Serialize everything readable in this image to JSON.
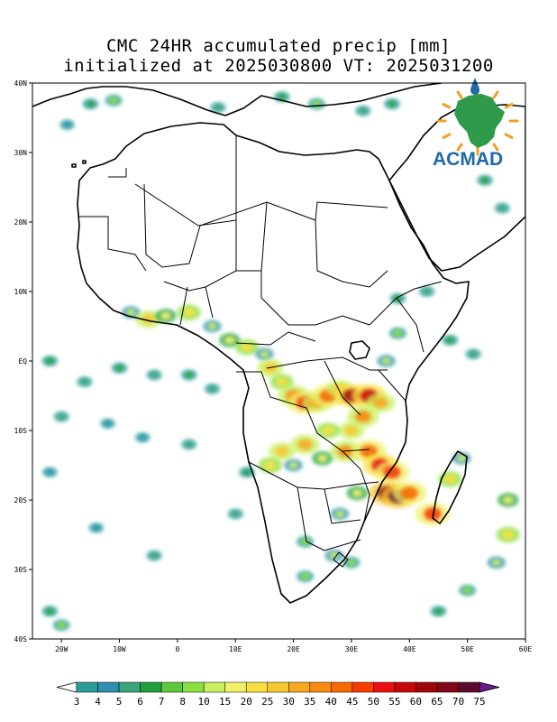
{
  "title": {
    "line1": "CMC 24HR accumulated precip [mm]",
    "line2": "initialized at 2025030800 VT: 2025031200"
  },
  "map": {
    "lon_range": [
      -25,
      60
    ],
    "lat_range": [
      -40,
      40
    ],
    "lat_ticks": [
      {
        "lat": 40,
        "label": "40N"
      },
      {
        "lat": 30,
        "label": "30N"
      },
      {
        "lat": 20,
        "label": "20N"
      },
      {
        "lat": 10,
        "label": "10N"
      },
      {
        "lat": 0,
        "label": "EQ"
      },
      {
        "lat": -10,
        "label": "10S"
      },
      {
        "lat": -20,
        "label": "20S"
      },
      {
        "lat": -30,
        "label": "30S"
      },
      {
        "lat": -40,
        "label": "40S"
      }
    ],
    "lon_ticks": [
      {
        "lon": -20,
        "label": "20W"
      },
      {
        "lon": -10,
        "label": "10W"
      },
      {
        "lon": 0,
        "label": "0"
      },
      {
        "lon": 10,
        "label": "10E"
      },
      {
        "lon": 20,
        "label": "20E"
      },
      {
        "lon": 30,
        "label": "30E"
      },
      {
        "lon": 40,
        "label": "40E"
      },
      {
        "lon": 50,
        "label": "50E"
      },
      {
        "lon": 60,
        "label": "60E"
      }
    ]
  },
  "logo": {
    "text": "ACMAD",
    "text_color": "#1e6aa8",
    "continent_color": "#2e9a4a",
    "rays_color": "#f0a020"
  },
  "colorbar": {
    "labels": [
      "3",
      "4",
      "5",
      "6",
      "7",
      "8",
      "10",
      "15",
      "20",
      "25",
      "30",
      "35",
      "40",
      "45",
      "50",
      "55",
      "60",
      "65",
      "70",
      "75"
    ],
    "colors": [
      "#2a9d9a",
      "#2e8fb0",
      "#3aa67a",
      "#22a040",
      "#5fc83a",
      "#8be040",
      "#c8f060",
      "#f0f06a",
      "#f8e040",
      "#f8c830",
      "#f8a820",
      "#f88a10",
      "#f86a00",
      "#f83c00",
      "#e81010",
      "#c80808",
      "#a00808",
      "#800818",
      "#5e0a2a"
    ],
    "end_color": "#6a1a8a"
  },
  "precip": {
    "cells": [
      {
        "lon": -15,
        "lat": 37,
        "mm": 6
      },
      {
        "lon": -11,
        "lat": 37.5,
        "mm": 8
      },
      {
        "lon": -19,
        "lat": 34,
        "mm": 4
      },
      {
        "lon": 7,
        "lat": 36.5,
        "mm": 5
      },
      {
        "lon": 18,
        "lat": 38,
        "mm": 6
      },
      {
        "lon": 24,
        "lat": 37,
        "mm": 8
      },
      {
        "lon": 32,
        "lat": 36,
        "mm": 5
      },
      {
        "lon": 37,
        "lat": 37,
        "mm": 6
      },
      {
        "lon": 53,
        "lat": 26,
        "mm": 6
      },
      {
        "lon": 56,
        "lat": 22,
        "mm": 5
      },
      {
        "lon": -8,
        "lat": 7,
        "mm": 10
      },
      {
        "lon": -5,
        "lat": 6,
        "mm": 25
      },
      {
        "lon": -2,
        "lat": 6.5,
        "mm": 15
      },
      {
        "lon": 2,
        "lat": 7,
        "mm": 20
      },
      {
        "lon": 6,
        "lat": 5,
        "mm": 10
      },
      {
        "lon": 9,
        "lat": 3,
        "mm": 15
      },
      {
        "lon": 12,
        "lat": 2,
        "mm": 20
      },
      {
        "lon": 15,
        "lat": 1,
        "mm": 10
      },
      {
        "lon": 16,
        "lat": -1,
        "mm": 25
      },
      {
        "lon": 18,
        "lat": -3,
        "mm": 20
      },
      {
        "lon": 20,
        "lat": -5,
        "mm": 35
      },
      {
        "lon": 22,
        "lat": -6,
        "mm": 45
      },
      {
        "lon": 24,
        "lat": -6,
        "mm": 30
      },
      {
        "lon": 26,
        "lat": -5,
        "mm": 40
      },
      {
        "lon": 28,
        "lat": -4,
        "mm": 25
      },
      {
        "lon": 30,
        "lat": -5,
        "mm": 60
      },
      {
        "lon": 33,
        "lat": -5,
        "mm": 55
      },
      {
        "lon": 35,
        "lat": -6,
        "mm": 30
      },
      {
        "lon": 32,
        "lat": -8,
        "mm": 35
      },
      {
        "lon": 30,
        "lat": -10,
        "mm": 25
      },
      {
        "lon": 26,
        "lat": -10,
        "mm": 20
      },
      {
        "lon": 22,
        "lat": -12,
        "mm": 30
      },
      {
        "lon": 18,
        "lat": -13,
        "mm": 25
      },
      {
        "lon": 16,
        "lat": -15,
        "mm": 20
      },
      {
        "lon": 20,
        "lat": -15,
        "mm": 10
      },
      {
        "lon": 25,
        "lat": -14,
        "mm": 15
      },
      {
        "lon": 29,
        "lat": -13,
        "mm": 35
      },
      {
        "lon": 33,
        "lat": -13,
        "mm": 40
      },
      {
        "lon": 35,
        "lat": -15,
        "mm": 50
      },
      {
        "lon": 37,
        "lat": -16,
        "mm": 45
      },
      {
        "lon": 36,
        "lat": -19,
        "mm": 65
      },
      {
        "lon": 38,
        "lat": -19.5,
        "mm": 70
      },
      {
        "lon": 40,
        "lat": -19,
        "mm": 40
      },
      {
        "lon": 31,
        "lat": -19,
        "mm": 15
      },
      {
        "lon": 28,
        "lat": -22,
        "mm": 10
      },
      {
        "lon": 22,
        "lat": -26,
        "mm": 8
      },
      {
        "lon": 27,
        "lat": -28,
        "mm": 10
      },
      {
        "lon": 30,
        "lat": -29,
        "mm": 8
      },
      {
        "lon": 44,
        "lat": -22,
        "mm": 45
      },
      {
        "lon": 47,
        "lat": -17,
        "mm": 20
      },
      {
        "lon": 49,
        "lat": -14,
        "mm": 10
      },
      {
        "lon": 36,
        "lat": 0,
        "mm": 10
      },
      {
        "lon": 38,
        "lat": 4,
        "mm": 8
      },
      {
        "lon": 38,
        "lat": 9,
        "mm": 6
      },
      {
        "lon": 43,
        "lat": 10,
        "mm": 5
      },
      {
        "lon": 47,
        "lat": 3,
        "mm": 6
      },
      {
        "lon": 51,
        "lat": 1,
        "mm": 5
      },
      {
        "lon": 57,
        "lat": -25,
        "mm": 20
      },
      {
        "lon": 55,
        "lat": -29,
        "mm": 10
      },
      {
        "lon": 50,
        "lat": -33,
        "mm": 8
      },
      {
        "lon": 45,
        "lat": -36,
        "mm": 6
      },
      {
        "lon": 57,
        "lat": -20,
        "mm": 15
      },
      {
        "lon": -22,
        "lat": 0,
        "mm": 6
      },
      {
        "lon": -16,
        "lat": -3,
        "mm": 5
      },
      {
        "lon": -10,
        "lat": -1,
        "mm": 6
      },
      {
        "lon": -4,
        "lat": -2,
        "mm": 5
      },
      {
        "lon": 2,
        "lat": -2,
        "mm": 6
      },
      {
        "lon": 6,
        "lat": -4,
        "mm": 5
      },
      {
        "lon": -20,
        "lat": -8,
        "mm": 5
      },
      {
        "lon": -12,
        "lat": -9,
        "mm": 4
      },
      {
        "lon": -6,
        "lat": -11,
        "mm": 4
      },
      {
        "lon": 2,
        "lat": -12,
        "mm": 5
      },
      {
        "lon": -22,
        "lat": -16,
        "mm": 4
      },
      {
        "lon": -14,
        "lat": -24,
        "mm": 4
      },
      {
        "lon": -4,
        "lat": -28,
        "mm": 5
      },
      {
        "lon": -22,
        "lat": -36,
        "mm": 6
      },
      {
        "lon": -20,
        "lat": -38,
        "mm": 8
      },
      {
        "lon": 10,
        "lat": -22,
        "mm": 5
      },
      {
        "lon": 12,
        "lat": -16,
        "mm": 6
      },
      {
        "lon": 22,
        "lat": -31,
        "mm": 8
      }
    ]
  }
}
